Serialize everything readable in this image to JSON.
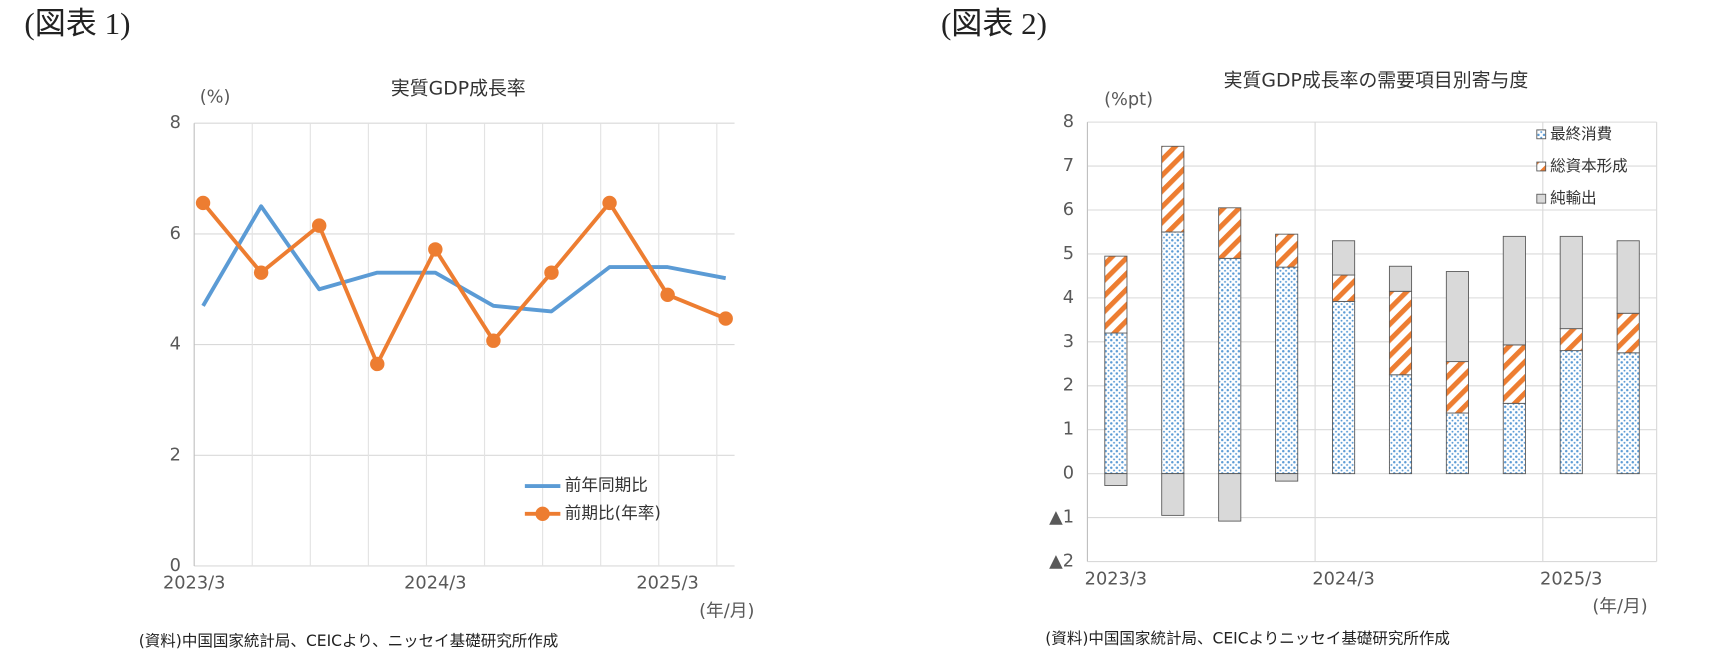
{
  "chart_data": [
    {
      "type": "line",
      "figure_label": "(図表 1)",
      "title": "実質GDP成長率",
      "y_unit": "(%)",
      "x_unit": "(年/月)",
      "source": "(資料)中国国家統計局、CEICより、ニッセイ基礎研究所作成",
      "categories": [
        "2023/3",
        null,
        null,
        null,
        "2024/3",
        null,
        null,
        null,
        "2025/3",
        null
      ],
      "series": [
        {
          "name": "前年同期比",
          "color": "#5b9bd5",
          "marker": false,
          "values": [
            4.7,
            6.5,
            5.0,
            5.3,
            5.3,
            4.7,
            4.6,
            5.4,
            5.4,
            5.2
          ]
        },
        {
          "name": "前期比(年率)",
          "color": "#ed7d31",
          "marker": true,
          "values": [
            6.56,
            5.3,
            6.15,
            3.65,
            5.72,
            4.07,
            5.3,
            6.56,
            4.9,
            4.47
          ]
        }
      ],
      "ylim": [
        0,
        8
      ],
      "yticks": [
        0,
        2,
        4,
        6,
        8
      ],
      "grid": true,
      "legend": "lower right"
    },
    {
      "type": "stacked_bar",
      "figure_label": "(図表 2)",
      "title": "実質GDP成長率の需要項目別寄与度",
      "y_unit": "(%pt)",
      "x_unit": "(年/月)",
      "source": "(資料)中国国家統計局、CEICよりニッセイ基礎研究所作成",
      "categories": [
        "2023/3",
        null,
        null,
        null,
        "2024/3",
        null,
        null,
        null,
        "2025/3",
        null
      ],
      "series": [
        {
          "name": "最終消費",
          "color": "#5b9bd5",
          "pattern": "dots",
          "values": [
            3.2,
            5.5,
            4.9,
            4.7,
            3.92,
            2.25,
            1.38,
            1.6,
            2.8,
            2.75
          ]
        },
        {
          "name": "総資本形成",
          "color": "#ed7d31",
          "pattern": "stripes",
          "values": [
            1.75,
            1.95,
            1.15,
            0.75,
            0.6,
            1.9,
            1.17,
            1.33,
            0.5,
            0.9
          ]
        },
        {
          "name": "純輸出",
          "color": "#d9d9d9",
          "pattern": "solid",
          "values": [
            -0.27,
            -0.95,
            -1.08,
            -0.17,
            0.78,
            0.57,
            2.05,
            2.47,
            2.1,
            1.65
          ]
        }
      ],
      "ylim": [
        -2,
        8
      ],
      "yticks": [
        {
          "value": -2,
          "label": "▲2"
        },
        {
          "value": -1,
          "label": "▲1"
        },
        0,
        1,
        2,
        3,
        4,
        5,
        6,
        7,
        8
      ],
      "grid": true,
      "legend": "upper right"
    }
  ]
}
